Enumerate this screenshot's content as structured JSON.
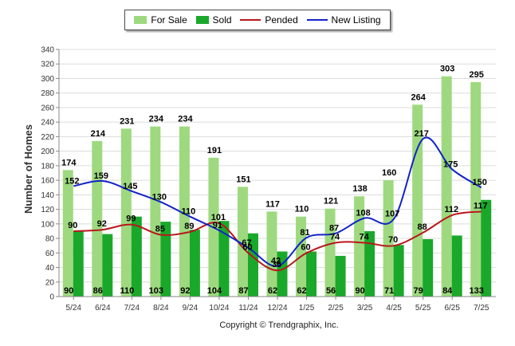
{
  "legend": {
    "items": [
      {
        "label": "For Sale",
        "color": "#9ed97f",
        "kind": "bar"
      },
      {
        "label": "Sold",
        "color": "#1aa82b",
        "kind": "bar"
      },
      {
        "label": "Pended",
        "color": "#b8171b",
        "kind": "line"
      },
      {
        "label": "New Listing",
        "color": "#1222c9",
        "kind": "line"
      }
    ]
  },
  "footer": {
    "copyright": "Copyright © Trendgraphix, Inc."
  },
  "chart_data": {
    "type": "bar",
    "title": "",
    "ylabel": "Number of Homes",
    "xlabel": "",
    "ylim": [
      0,
      340
    ],
    "yticks": [
      0,
      20,
      40,
      60,
      80,
      100,
      120,
      140,
      160,
      180,
      200,
      220,
      240,
      260,
      280,
      300,
      320,
      340
    ],
    "grid": true,
    "legend_position": "top",
    "categories": [
      "5/24",
      "6/24",
      "7/24",
      "8/24",
      "9/24",
      "10/24",
      "11/24",
      "12/24",
      "1/25",
      "2/25",
      "3/25",
      "4/25",
      "5/25",
      "6/25",
      "7/25"
    ],
    "series": [
      {
        "name": "For Sale",
        "type": "bar",
        "color": "#9ed97f",
        "values": [
          174,
          214,
          231,
          234,
          234,
          191,
          151,
          117,
          110,
          121,
          138,
          160,
          264,
          303,
          295
        ]
      },
      {
        "name": "Sold",
        "type": "bar",
        "color": "#1aa82b",
        "values": [
          90,
          86,
          110,
          103,
          92,
          104,
          87,
          62,
          62,
          56,
          90,
          71,
          79,
          84,
          133
        ]
      },
      {
        "name": "Pended",
        "type": "line",
        "color": "#b8171b",
        "values": [
          90,
          92,
          99,
          85,
          89,
          101,
          60,
          36,
          60,
          74,
          74,
          70,
          88,
          112,
          117
        ]
      },
      {
        "name": "New Listing",
        "type": "line",
        "color": "#1222c9",
        "values": [
          152,
          159,
          145,
          130,
          110,
          91,
          67,
          42,
          81,
          87,
          108,
          107,
          217,
          175,
          150
        ]
      }
    ]
  }
}
